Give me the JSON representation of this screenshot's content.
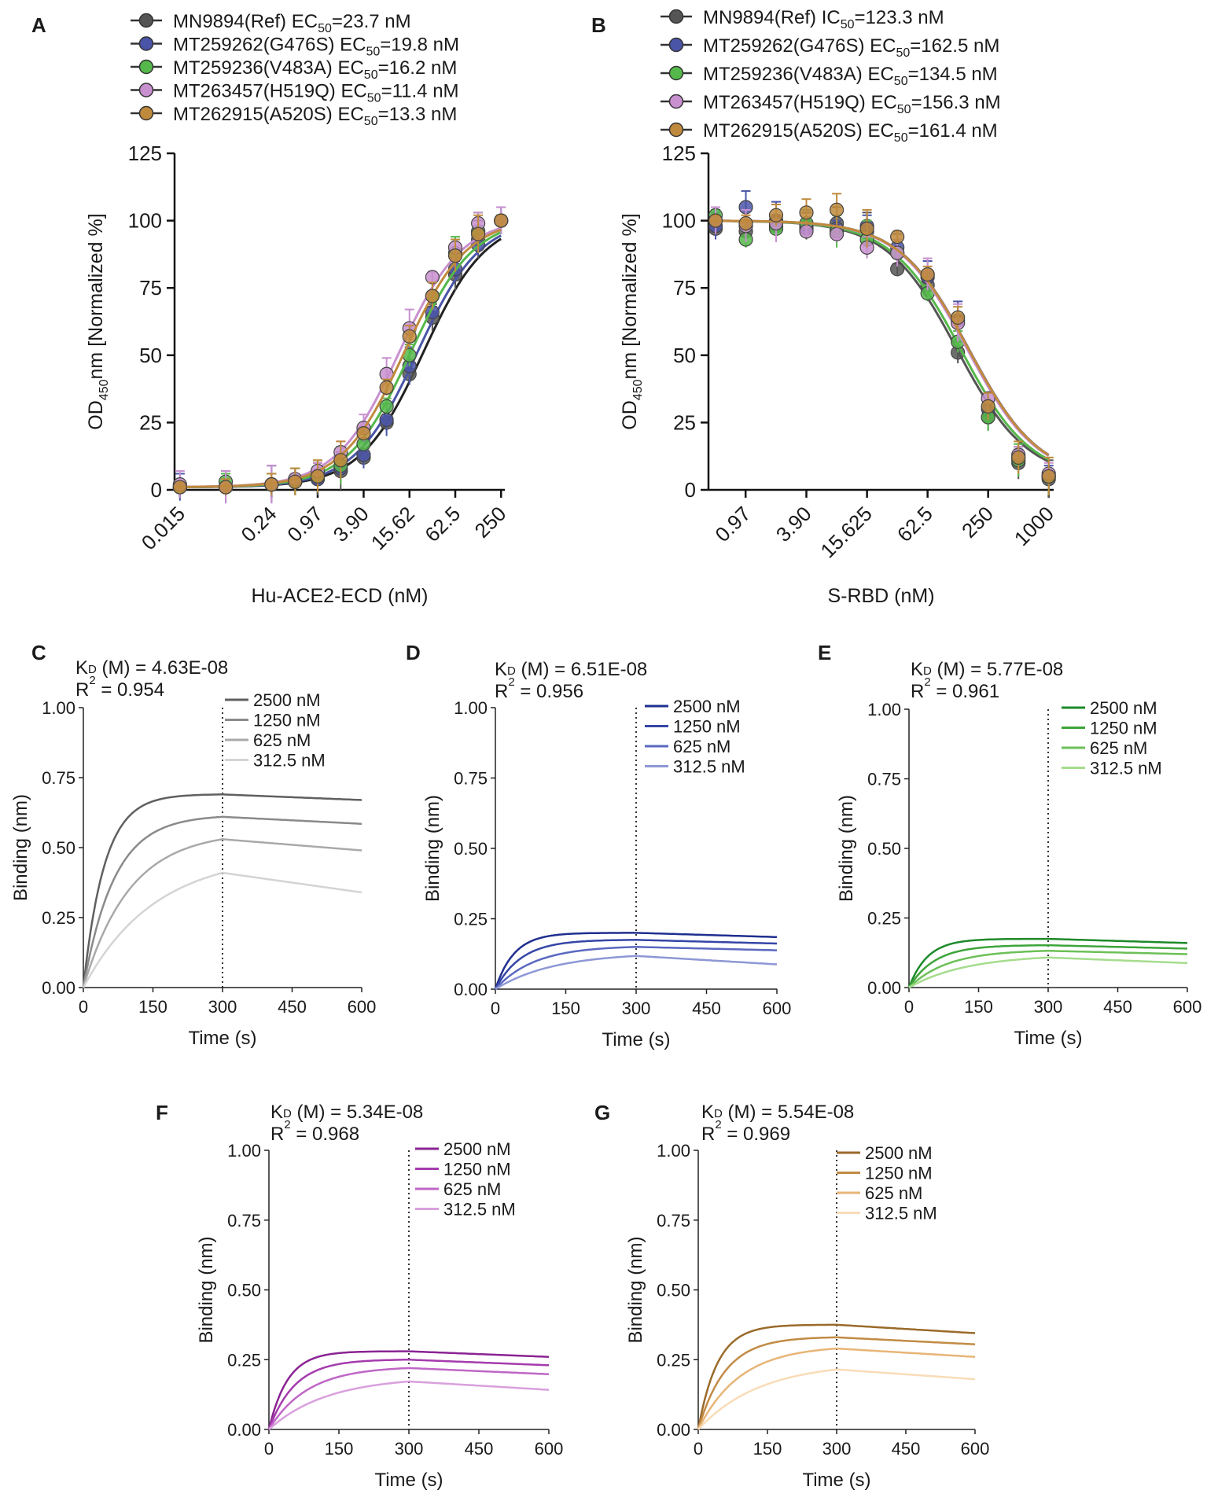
{
  "colors": {
    "ref": "#555555",
    "g476s": "#4a55a8",
    "v483a": "#55b84a",
    "h519q": "#c890cf",
    "a520s": "#c08a3c"
  },
  "chart_data": [
    {
      "panel": "A",
      "type": "line",
      "xlabel": "Hu-ACE2-ECD (nM)",
      "ylabel": "OD450 nm [Normalized %]",
      "ylabel_parts": [
        "OD",
        "450",
        "nm [Normalized %]"
      ],
      "x_scale": "log",
      "xticks": [
        "0.015",
        "0.24",
        "0.97",
        "3.90",
        "15.62",
        "62.5",
        "250"
      ],
      "xtick_values": [
        0.015,
        0.24,
        0.97,
        3.9,
        15.62,
        62.5,
        250
      ],
      "ylim": [
        0,
        125
      ],
      "yticks": [
        "0",
        "25",
        "50",
        "75",
        "100",
        "125"
      ],
      "legend": [
        {
          "pre": "MN9894(Ref) ",
          "param": "EC",
          "sub": "50",
          "value": "=23.7 nM"
        },
        {
          "pre": "MT259262(G476S) ",
          "param": "EC",
          "sub": "50",
          "value": "=19.8 nM"
        },
        {
          "pre": "MT259236(V483A) ",
          "param": "EC",
          "sub": "50",
          "value": "=16.2 nM"
        },
        {
          "pre": "MT263457(H519Q) ",
          "param": "EC",
          "sub": "50",
          "value": "=11.4 nM"
        },
        {
          "pre": "MT262915(A520S) ",
          "param": "EC",
          "sub": "50",
          "value": "=13.3 nM"
        }
      ],
      "x": [
        0.015,
        0.06,
        0.24,
        0.49,
        0.97,
        1.95,
        3.9,
        7.81,
        15.62,
        31.25,
        62.5,
        125,
        250
      ],
      "series": [
        {
          "name": "MN9894(Ref)",
          "color_key": "ref",
          "ec50": 23.7,
          "values": [
            1,
            1,
            2,
            3,
            4,
            7,
            12,
            25,
            43,
            64,
            80,
            93,
            100
          ]
        },
        {
          "name": "MT259262(G476S)",
          "color_key": "g476s",
          "ec50": 19.8,
          "values": [
            1,
            1,
            2,
            3,
            4,
            8,
            13,
            26,
            46,
            66,
            82,
            91,
            100
          ]
        },
        {
          "name": "MT259236(V483A)",
          "color_key": "v483a",
          "ec50": 16.2,
          "values": [
            1,
            3,
            2,
            3,
            5,
            9,
            17,
            31,
            50,
            72,
            88,
            96,
            100
          ]
        },
        {
          "name": "MT263457(H519Q)",
          "color_key": "h519q",
          "ec50": 11.4,
          "values": [
            2,
            1,
            2,
            4,
            7,
            14,
            23,
            43,
            60,
            79,
            90,
            99,
            100
          ]
        },
        {
          "name": "MT262915(A520S)",
          "color_key": "a520s",
          "ec50": 13.3,
          "values": [
            1,
            1,
            2,
            3,
            5,
            11,
            21,
            38,
            57,
            72,
            87,
            95,
            100
          ]
        }
      ]
    },
    {
      "panel": "B",
      "type": "line",
      "xlabel": "S-RBD (nM)",
      "ylabel": "OD450nm [Normalized %]",
      "ylabel_parts": [
        "OD",
        "450",
        "nm [Normalized %]"
      ],
      "x_scale": "log",
      "xticks": [
        "0.97",
        "3.90",
        "15.625",
        "62.5",
        "250",
        "1000"
      ],
      "xtick_values": [
        0.97,
        3.9,
        15.625,
        62.5,
        250,
        1000
      ],
      "ylim": [
        0,
        125
      ],
      "yticks": [
        "0",
        "25",
        "50",
        "75",
        "100",
        "125"
      ],
      "legend": [
        {
          "pre": "MN9894(Ref) ",
          "param": "IC",
          "sub": "50",
          "value": "=123.3 nM"
        },
        {
          "pre": "MT259262(G476S) ",
          "param": "EC",
          "sub": "50",
          "value": "=162.5 nM"
        },
        {
          "pre": "MT259236(V483A) ",
          "param": "EC",
          "sub": "50",
          "value": "=134.5 nM"
        },
        {
          "pre": "MT263457(H519Q) ",
          "param": "EC",
          "sub": "50",
          "value": "=156.3 nM"
        },
        {
          "pre": "MT262915(A520S) ",
          "param": "EC",
          "sub": "50",
          "value": "=161.4 nM"
        }
      ],
      "x": [
        0.488,
        0.976,
        1.95,
        3.9,
        7.81,
        15.62,
        31.25,
        62.5,
        125,
        250,
        500,
        1000
      ],
      "series": [
        {
          "name": "MN9894(Ref)",
          "color_key": "ref",
          "ic50": 123.3,
          "values": [
            97,
            96,
            98,
            98,
            99,
            96,
            82,
            76,
            51,
            27,
            10,
            4
          ]
        },
        {
          "name": "MT259262(G476S)",
          "color_key": "g476s",
          "ec50": 162.5,
          "values": [
            98,
            105,
            100,
            97,
            97,
            98,
            90,
            79,
            63,
            30,
            12,
            5
          ]
        },
        {
          "name": "MT259236(V483A)",
          "color_key": "v483a",
          "ec50": 134.5,
          "values": [
            102,
            93,
            97,
            99,
            96,
            93,
            88,
            73,
            55,
            27,
            11,
            5
          ]
        },
        {
          "name": "MT263457(H519Q)",
          "color_key": "h519q",
          "ec50": 156.3,
          "values": [
            100,
            98,
            99,
            96,
            95,
            90,
            88,
            80,
            62,
            34,
            13,
            6
          ]
        },
        {
          "name": "MT262915(A520S)",
          "color_key": "a520s",
          "ec50": 161.4,
          "values": [
            100,
            99,
            102,
            103,
            104,
            97,
            94,
            80,
            64,
            31,
            12,
            5
          ]
        }
      ]
    },
    {
      "panel": "C",
      "type": "line",
      "color_key": "ref",
      "kd": "= 4.63E-08",
      "r2": "= 0.954",
      "xlabel": "Time (s)",
      "ylabel": "Binding (nm)",
      "xlim": [
        0,
        600
      ],
      "ylim": [
        0,
        1
      ],
      "xticks": [
        "0",
        "150",
        "300",
        "450",
        "600"
      ],
      "yticks": [
        "0.00",
        "0.25",
        "0.50",
        "0.75",
        "1.00"
      ],
      "dissociation_start": 300,
      "series": [
        {
          "name": "2500 nM",
          "shade": "#606060",
          "plateau": 0.69,
          "k_on": 0.022,
          "end": 0.67
        },
        {
          "name": "1250 nM",
          "shade": "#8a8a8a",
          "plateau": 0.61,
          "k_on": 0.015,
          "end": 0.585
        },
        {
          "name": "625 nM",
          "shade": "#a9a9a9",
          "plateau": 0.53,
          "k_on": 0.01,
          "end": 0.49
        },
        {
          "name": "312.5 nM",
          "shade": "#d4d4d4",
          "plateau": 0.41,
          "k_on": 0.0065,
          "end": 0.34
        }
      ]
    },
    {
      "panel": "D",
      "type": "line",
      "color_key": "g476s",
      "kd": "= 6.51E-08",
      "r2": "= 0.956",
      "xlabel": "Time (s)",
      "ylabel": "Binding (nm)",
      "xlim": [
        0,
        600
      ],
      "ylim": [
        0,
        1
      ],
      "xticks": [
        "0",
        "150",
        "300",
        "450",
        "600"
      ],
      "yticks": [
        "0.00",
        "0.25",
        "0.50",
        "0.75",
        "1.00"
      ],
      "dissociation_start": 300,
      "series": [
        {
          "name": "2500 nM",
          "shade": "#1f2f8f",
          "plateau": 0.2,
          "k_on": 0.025,
          "end": 0.185
        },
        {
          "name": "1250 nM",
          "shade": "#3546a6",
          "plateau": 0.175,
          "k_on": 0.018,
          "end": 0.162
        },
        {
          "name": "625 nM",
          "shade": "#5a68c0",
          "plateau": 0.15,
          "k_on": 0.012,
          "end": 0.138
        },
        {
          "name": "312.5 nM",
          "shade": "#8e98d6",
          "plateau": 0.118,
          "k_on": 0.008,
          "end": 0.088
        }
      ]
    },
    {
      "panel": "E",
      "type": "line",
      "color_key": "v483a",
      "kd": "= 5.77E-08",
      "r2": "= 0.961",
      "xlabel": "Time (s)",
      "ylabel": "Binding (nm)",
      "xlim": [
        0,
        600
      ],
      "ylim": [
        0,
        1
      ],
      "xticks": [
        "0",
        "150",
        "300",
        "450",
        "600"
      ],
      "yticks": [
        "0.00",
        "0.25",
        "0.50",
        "0.75",
        "1.00"
      ],
      "dissociation_start": 300,
      "series": [
        {
          "name": "2500 nM",
          "shade": "#1e8a2a",
          "plateau": 0.175,
          "k_on": 0.025,
          "end": 0.16
        },
        {
          "name": "1250 nM",
          "shade": "#3da43a",
          "plateau": 0.152,
          "k_on": 0.018,
          "end": 0.14
        },
        {
          "name": "625 nM",
          "shade": "#6cc058",
          "plateau": 0.132,
          "k_on": 0.012,
          "end": 0.12
        },
        {
          "name": "312.5 nM",
          "shade": "#a6dc8e",
          "plateau": 0.108,
          "k_on": 0.008,
          "end": 0.088
        }
      ]
    },
    {
      "panel": "F",
      "type": "line",
      "color_key": "h519q",
      "kd": "= 5.34E-08",
      "r2": "= 0.968",
      "xlabel": "Time (s)",
      "ylabel": "Binding (nm)",
      "xlim": [
        0,
        600
      ],
      "ylim": [
        0,
        1
      ],
      "xticks": [
        "0",
        "150",
        "300",
        "450",
        "600"
      ],
      "yticks": [
        "0.00",
        "0.25",
        "0.50",
        "0.75",
        "1.00"
      ],
      "dissociation_start": 300,
      "series": [
        {
          "name": "2500 nM",
          "shade": "#8a2493",
          "plateau": 0.28,
          "k_on": 0.025,
          "end": 0.26
        },
        {
          "name": "1250 nM",
          "shade": "#a53cae",
          "plateau": 0.25,
          "k_on": 0.018,
          "end": 0.23
        },
        {
          "name": "625 nM",
          "shade": "#bf67c6",
          "plateau": 0.22,
          "k_on": 0.012,
          "end": 0.198
        },
        {
          "name": "312.5 nM",
          "shade": "#d9a0dd",
          "plateau": 0.172,
          "k_on": 0.008,
          "end": 0.142
        }
      ]
    },
    {
      "panel": "G",
      "type": "line",
      "color_key": "a520s",
      "kd": "= 5.54E-08",
      "r2": "= 0.969",
      "xlabel": "Time (s)",
      "ylabel": "Binding (nm)",
      "xlim": [
        0,
        600
      ],
      "ylim": [
        0,
        1
      ],
      "xticks": [
        "0",
        "150",
        "300",
        "450",
        "600"
      ],
      "yticks": [
        "0.00",
        "0.25",
        "0.50",
        "0.75",
        "1.00"
      ],
      "dissociation_start": 300,
      "series": [
        {
          "name": "2500 nM",
          "shade": "#9a6a2a",
          "plateau": 0.375,
          "k_on": 0.024,
          "end": 0.345
        },
        {
          "name": "1250 nM",
          "shade": "#c28b45",
          "plateau": 0.33,
          "k_on": 0.017,
          "end": 0.305
        },
        {
          "name": "625 nM",
          "shade": "#e8b577",
          "plateau": 0.29,
          "k_on": 0.011,
          "end": 0.26
        },
        {
          "name": "312.5 nM",
          "shade": "#f8dcb8",
          "plateau": 0.215,
          "k_on": 0.0075,
          "end": 0.18
        }
      ]
    }
  ]
}
